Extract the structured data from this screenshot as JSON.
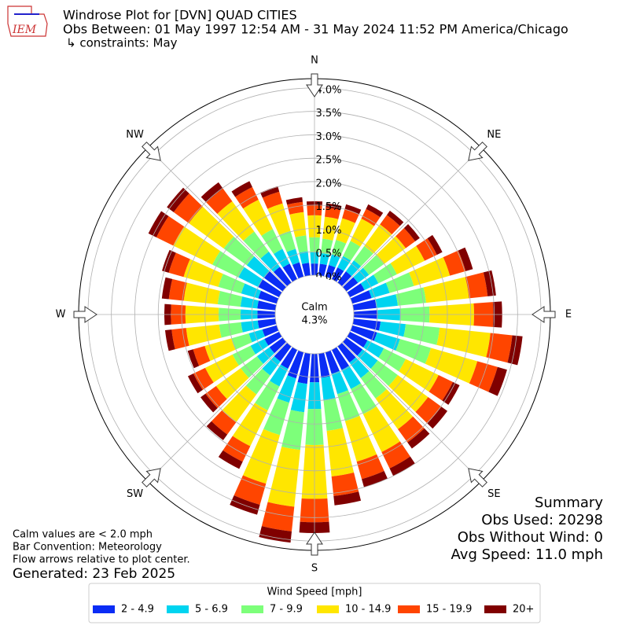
{
  "chart_data": {
    "type": "windrose",
    "title": "Windrose Plot for [DVN] QUAD CITIES",
    "subtitle": "Obs Between: 01 May 1997 12:54 AM - 31 May 2024 11:52 PM America/Chicago",
    "constraints": "↳ constraints: May",
    "logo_text": "IEM",
    "x": [
      0,
      10,
      20,
      30,
      40,
      50,
      60,
      70,
      80,
      90,
      100,
      110,
      120,
      130,
      140,
      150,
      160,
      170,
      180,
      190,
      200,
      210,
      220,
      230,
      240,
      250,
      260,
      270,
      280,
      290,
      300,
      310,
      320,
      330,
      340,
      350
    ],
    "xticks": [
      {
        "value": 0,
        "label": "N"
      },
      {
        "value": 45,
        "label": "NE"
      },
      {
        "value": 90,
        "label": "E"
      },
      {
        "value": 135,
        "label": "SE"
      },
      {
        "value": 180,
        "label": "S"
      },
      {
        "value": 225,
        "label": "SW"
      },
      {
        "value": 270,
        "label": "W"
      },
      {
        "value": 315,
        "label": "NW"
      }
    ],
    "ylim": [
      0,
      4.2
    ],
    "yticks": [
      {
        "value": 0,
        "label": "0.0%"
      },
      {
        "value": 0.5,
        "label": "0.5%"
      },
      {
        "value": 1,
        "label": "1.0%"
      },
      {
        "value": 1.5,
        "label": "1.5%"
      },
      {
        "value": 2,
        "label": "2.0%"
      },
      {
        "value": 2.5,
        "label": "2.5%"
      },
      {
        "value": 3,
        "label": "3.0%"
      },
      {
        "value": 3.5,
        "label": "3.5%"
      },
      {
        "value": 4,
        "label": "4.0%"
      }
    ],
    "grid": true,
    "stacked": true,
    "calm_label": "Calm",
    "calm_value": 4.3,
    "calm_value_label": "4.3%",
    "series": [
      {
        "name": "2 - 4.9",
        "color": "#0a2cf5",
        "values": [
          0.25,
          0.25,
          0.26,
          0.28,
          0.3,
          0.31,
          0.35,
          0.43,
          0.49,
          0.51,
          0.58,
          0.55,
          0.42,
          0.43,
          0.43,
          0.48,
          0.48,
          0.52,
          0.61,
          0.65,
          0.58,
          0.45,
          0.4,
          0.35,
          0.35,
          0.32,
          0.38,
          0.38,
          0.39,
          0.41,
          0.5,
          0.49,
          0.42,
          0.37,
          0.32,
          0.27
        ]
      },
      {
        "name": "5 - 6.9",
        "color": "#00d4f0",
        "values": [
          0.24,
          0.23,
          0.24,
          0.27,
          0.29,
          0.29,
          0.33,
          0.4,
          0.46,
          0.48,
          0.54,
          0.51,
          0.39,
          0.4,
          0.41,
          0.45,
          0.45,
          0.49,
          0.57,
          0.61,
          0.54,
          0.42,
          0.37,
          0.33,
          0.33,
          0.3,
          0.36,
          0.36,
          0.36,
          0.38,
          0.47,
          0.46,
          0.4,
          0.35,
          0.3,
          0.25
        ]
      },
      {
        "name": "7 - 9.9",
        "color": "#7dff7a",
        "values": [
          0.32,
          0.31,
          0.32,
          0.36,
          0.38,
          0.39,
          0.44,
          0.54,
          0.61,
          0.63,
          0.73,
          0.69,
          0.52,
          0.53,
          0.54,
          0.6,
          0.6,
          0.65,
          0.77,
          0.81,
          0.72,
          0.57,
          0.5,
          0.43,
          0.43,
          0.39,
          0.47,
          0.47,
          0.49,
          0.51,
          0.62,
          0.61,
          0.53,
          0.47,
          0.4,
          0.34
        ]
      },
      {
        "name": "10 - 14.9",
        "color": "#ffe600",
        "values": [
          0.47,
          0.47,
          0.48,
          0.53,
          0.57,
          0.58,
          0.66,
          0.8,
          0.92,
          0.95,
          1.09,
          1.03,
          0.78,
          0.8,
          0.81,
          0.9,
          0.9,
          0.98,
          1.15,
          1.22,
          1.08,
          0.85,
          0.74,
          0.65,
          0.65,
          0.59,
          0.71,
          0.71,
          0.73,
          0.77,
          0.93,
          0.92,
          0.8,
          0.7,
          0.61,
          0.5
        ]
      },
      {
        "name": "15 - 19.9",
        "color": "#ff4500",
        "values": [
          0.21,
          0.2,
          0.21,
          0.23,
          0.25,
          0.25,
          0.29,
          0.35,
          0.4,
          0.41,
          0.47,
          0.45,
          0.34,
          0.35,
          0.35,
          0.39,
          0.39,
          0.42,
          0.5,
          0.53,
          0.47,
          0.37,
          0.32,
          0.28,
          0.28,
          0.26,
          0.31,
          0.31,
          0.32,
          0.33,
          0.4,
          0.4,
          0.34,
          0.3,
          0.26,
          0.22
        ]
      },
      {
        "name": "20+",
        "color": "#800000",
        "values": [
          0.09,
          0.09,
          0.1,
          0.11,
          0.11,
          0.12,
          0.13,
          0.16,
          0.18,
          0.19,
          0.22,
          0.21,
          0.16,
          0.16,
          0.16,
          0.18,
          0.18,
          0.2,
          0.23,
          0.24,
          0.22,
          0.17,
          0.15,
          0.13,
          0.13,
          0.12,
          0.14,
          0.14,
          0.15,
          0.15,
          0.19,
          0.18,
          0.16,
          0.14,
          0.12,
          0.1
        ]
      }
    ],
    "legend_title": "Wind Speed [mph]",
    "legend": "lower center",
    "summary": [
      "Summary",
      "Obs Used: 20298",
      "Obs Without Wind: 0",
      "Avg Speed: 11.0 mph"
    ],
    "notes": [
      "Calm values are < 2.0 mph",
      "Bar Convention: Meteorology",
      "Flow arrows relative to plot center."
    ],
    "generated": "Generated: 23 Feb 2025"
  }
}
